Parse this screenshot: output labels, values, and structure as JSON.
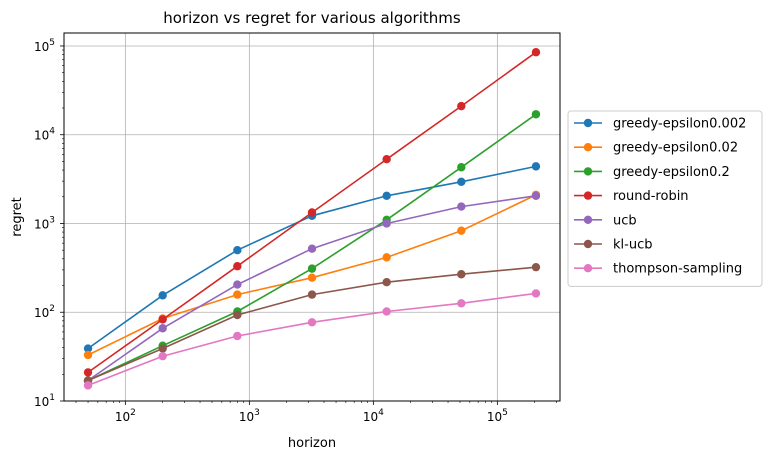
{
  "chart_data": {
    "type": "line",
    "title": "horizon vs regret for various algorithms",
    "xlabel": "horizon",
    "ylabel": "regret",
    "xscale": "log",
    "yscale": "log",
    "xlim": [
      32,
      320000
    ],
    "ylim": [
      10,
      140000
    ],
    "grid": true,
    "legend_position": "outside-right",
    "x": [
      50,
      200,
      800,
      3200,
      12800,
      51200,
      204800
    ],
    "x_ticks": [
      {
        "value": 100,
        "base": "10",
        "exp": "2"
      },
      {
        "value": 1000,
        "base": "10",
        "exp": "3"
      },
      {
        "value": 10000,
        "base": "10",
        "exp": "4"
      },
      {
        "value": 100000,
        "base": "10",
        "exp": "5"
      }
    ],
    "y_ticks": [
      {
        "value": 10,
        "base": "10",
        "exp": "1"
      },
      {
        "value": 100,
        "base": "10",
        "exp": "2"
      },
      {
        "value": 1000,
        "base": "10",
        "exp": "3"
      },
      {
        "value": 10000,
        "base": "10",
        "exp": "4"
      },
      {
        "value": 100000,
        "base": "10",
        "exp": "5"
      }
    ],
    "series": [
      {
        "name": "greedy-epsilon0.002",
        "color": "#1f77b4",
        "values": [
          39,
          155,
          500,
          1220,
          2050,
          2950,
          4400
        ]
      },
      {
        "name": "greedy-epsilon0.02",
        "color": "#ff7f0e",
        "values": [
          33,
          85,
          158,
          245,
          415,
          830,
          2100
        ]
      },
      {
        "name": "greedy-epsilon0.2",
        "color": "#2ca02c",
        "values": [
          17,
          42,
          102,
          310,
          1100,
          4300,
          17000
        ]
      },
      {
        "name": "round-robin",
        "color": "#d62728",
        "values": [
          21,
          83,
          330,
          1330,
          5300,
          21000,
          85000
        ]
      },
      {
        "name": "ucb",
        "color": "#9467bd",
        "values": [
          17,
          66,
          205,
          520,
          1000,
          1550,
          2050
        ]
      },
      {
        "name": "kl-ucb",
        "color": "#8c564b",
        "values": [
          17,
          39,
          93,
          158,
          218,
          268,
          322
        ]
      },
      {
        "name": "thompson-sampling",
        "color": "#e377c2",
        "values": [
          15,
          32,
          54,
          77,
          102,
          126,
          163
        ]
      }
    ]
  }
}
